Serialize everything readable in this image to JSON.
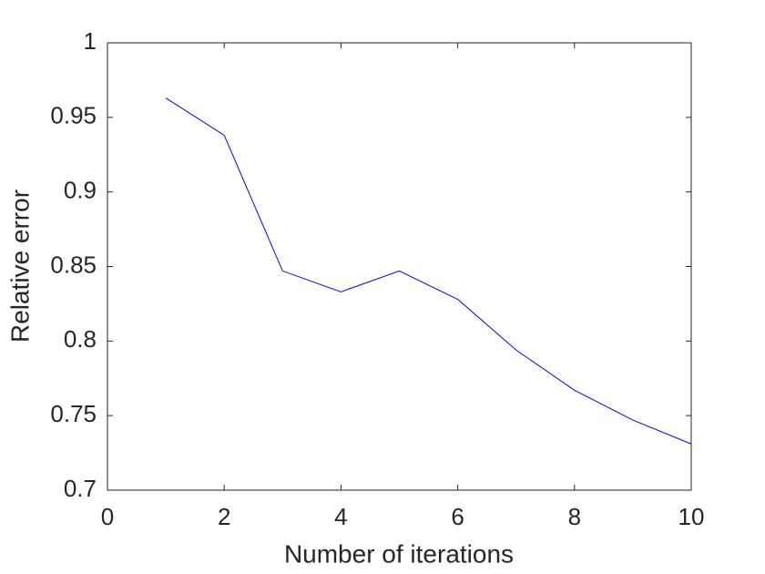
{
  "chart_data": {
    "type": "line",
    "xlabel": "Number of iterations",
    "ylabel": "Relative error",
    "x": [
      1,
      2,
      3,
      4,
      5,
      6,
      7,
      8,
      9,
      10
    ],
    "values": [
      0.963,
      0.938,
      0.847,
      0.833,
      0.847,
      0.828,
      0.794,
      0.767,
      0.747,
      0.731
    ],
    "color": "#0000ff",
    "xlim": [
      0,
      10
    ],
    "xticks": [
      0,
      2,
      4,
      6,
      8,
      10
    ],
    "ylim": [
      0.7,
      1
    ],
    "yticks": [
      0.7,
      0.75,
      0.8,
      0.85,
      0.9,
      0.95,
      1
    ],
    "box": true
  }
}
